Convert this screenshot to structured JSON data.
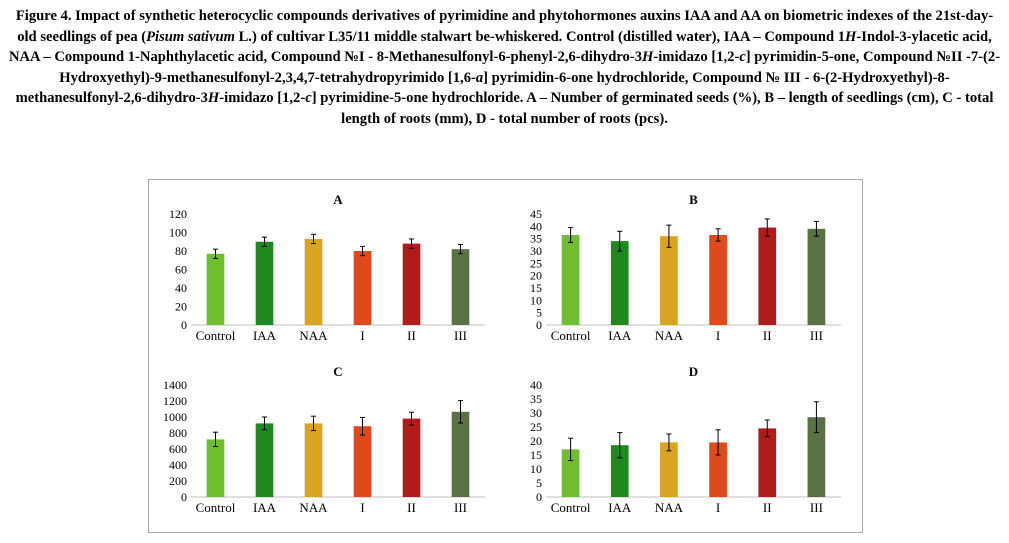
{
  "caption": {
    "s1": "Figure 4. Impact of synthetic heterocyclic compounds derivatives of pyrimidine and phytohormones auxins IAA and AA on biometric indexes of the 21st-day-old seedlings of pea (",
    "s2": "Pisum sativum",
    "s3": " L.) of cultivar L35/11 middle stalwart be-whiskered. Control (distilled water), IAA – Compound 1",
    "s4": "H",
    "s5": "-Indol-3-ylacetic acid, NAA – Compound 1-Naphthylacetic acid, Compound №I - 8-Methanesulfonyl-6-phenyl-2,6-dihydro-3",
    "s6": "H",
    "s7": "-imidazo [1,2-",
    "s8": "c",
    "s9": "] pyrimidin-5-one, Compound №II -7-(2-Hydroxyethyl)-9-methanesulfonyl-2,3,4,7-tetrahydropyrimido [1,6-",
    "s10": "a",
    "s11": "] pyrimidin-6-one hydrochloride, Compound № III - 6-(2-Hydroxyethyl)-8-methanesulfonyl-2,6-dihydro-3",
    "s12": "H",
    "s13": "-imidazo [1,2-",
    "s14": "c",
    "s15": "] pyrimidine-5-one hydrochloride. A – Number of germinated seeds (%), B – length of seedlings (cm), C - total length of roots (mm), D - total number of roots (pcs)."
  },
  "colors": [
    "#6fbe2d",
    "#1e8a1e",
    "#d9a521",
    "#e04a1a",
    "#b01c1c",
    "#5a7045"
  ],
  "chart_data": [
    {
      "type": "bar",
      "title": "A",
      "xlabel": "",
      "ylabel": "",
      "categories": [
        "Control",
        "IAA",
        "NAA",
        "I",
        "II",
        "III"
      ],
      "values": [
        77,
        90,
        93,
        80,
        88,
        82
      ],
      "errors": [
        5,
        5,
        5,
        5,
        5,
        5
      ],
      "ylim": [
        0,
        120
      ],
      "yticks": [
        "0",
        "20",
        "40",
        "60",
        "80",
        "100",
        "120"
      ]
    },
    {
      "type": "bar",
      "title": "B",
      "xlabel": "",
      "ylabel": "",
      "categories": [
        "Control",
        "IAA",
        "NAA",
        "I",
        "II",
        "III"
      ],
      "values": [
        36.5,
        34,
        36,
        36.5,
        39.5,
        39
      ],
      "errors": [
        3,
        4,
        4.5,
        2.5,
        3.5,
        3
      ],
      "ylim": [
        0,
        45
      ],
      "yticks": [
        "0",
        "5",
        "10",
        "15",
        "20",
        "25",
        "30",
        "35",
        "40",
        "45"
      ]
    },
    {
      "type": "bar",
      "title": "C",
      "xlabel": "",
      "ylabel": "",
      "categories": [
        "Control",
        "IAA",
        "NAA",
        "I",
        "II",
        "III"
      ],
      "values": [
        720,
        920,
        920,
        885,
        980,
        1065
      ],
      "errors": [
        90,
        80,
        90,
        110,
        80,
        140
      ],
      "ylim": [
        0,
        1400
      ],
      "yticks": [
        "0",
        "200",
        "400",
        "600",
        "800",
        "1000",
        "1200",
        "1400"
      ]
    },
    {
      "type": "bar",
      "title": "D",
      "xlabel": "",
      "ylabel": "",
      "categories": [
        "Control",
        "IAA",
        "NAA",
        "I",
        "II",
        "III"
      ],
      "values": [
        17,
        18.5,
        19.5,
        19.5,
        24.5,
        28.5
      ],
      "errors": [
        4,
        4.5,
        3,
        4.5,
        3,
        5.5
      ],
      "ylim": [
        0,
        40
      ],
      "yticks": [
        "0",
        "5",
        "10",
        "15",
        "20",
        "25",
        "30",
        "35",
        "40"
      ]
    }
  ]
}
